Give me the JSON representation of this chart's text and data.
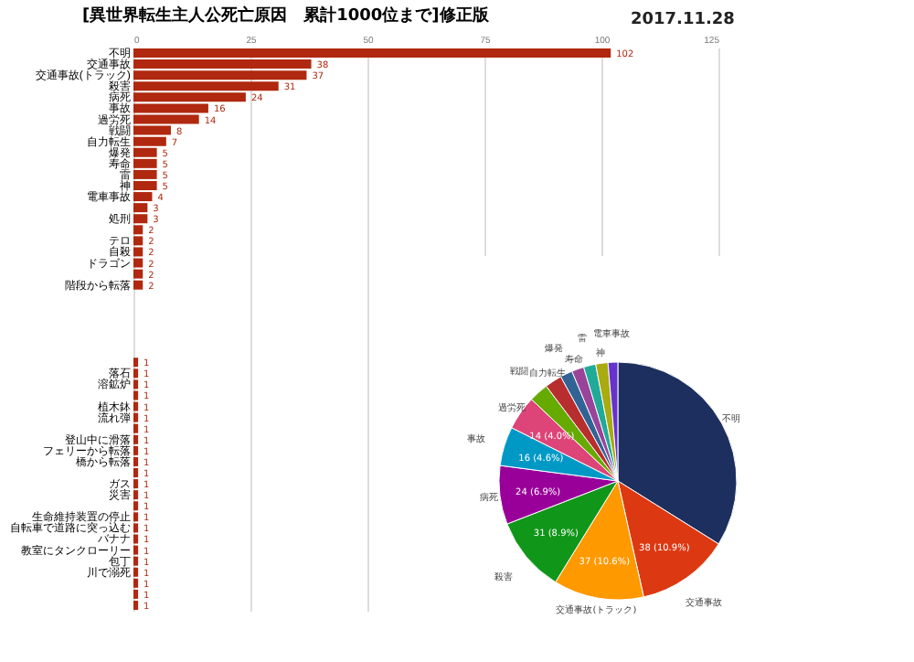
{
  "chart_data": [
    {
      "type": "bar",
      "orientation": "horizontal",
      "title": "[異世界転生主人公死亡原因　累計1000位まで]修正版",
      "annotations": [
        "2017.11.28"
      ],
      "color": "#b0280f",
      "data_labels": true,
      "grid": "x",
      "xlim": [
        0,
        125
      ],
      "xticks": [
        0,
        25,
        50,
        75,
        100,
        125
      ],
      "categories": [
        "不明",
        "交通事故",
        "交通事故(トラック)",
        "殺害",
        "病死",
        "事故",
        "過労死",
        "戦闘",
        "自力転生",
        "爆発",
        "寿命",
        "雷",
        "神",
        "電車事故",
        null,
        "処刑",
        null,
        "テロ",
        "自殺",
        "ドラゴン",
        null,
        "階段から転落",
        null,
        null,
        null,
        null,
        null,
        null,
        null,
        "落石",
        "溶鉱炉",
        null,
        "植木鉢",
        "流れ弾",
        null,
        "登山中に滑落",
        "フェリーから転落",
        "橋から転落",
        null,
        "ガス",
        "災害",
        null,
        "生命維持装置の停止",
        "自転車で道路に突っ込む",
        "バナナ",
        "教室にタンクローリー",
        "包丁",
        "川で溺死",
        null,
        null,
        null
      ],
      "values": [
        102,
        38,
        37,
        31,
        24,
        16,
        14,
        8,
        7,
        5,
        5,
        5,
        5,
        4,
        3,
        3,
        2,
        2,
        2,
        2,
        2,
        2,
        null,
        null,
        null,
        null,
        null,
        null,
        1,
        1,
        1,
        1,
        1,
        1,
        1,
        1,
        1,
        1,
        1,
        1,
        1,
        1,
        1,
        1,
        1,
        1,
        1,
        1,
        1,
        1,
        1
      ]
    },
    {
      "type": "pie",
      "categories": [
        "不明",
        "交通事故",
        "交通事故(トラック)",
        "殺害",
        "病死",
        "事故",
        "過労死",
        "戦闘",
        "自力転生",
        "爆発",
        "寿命",
        "雷",
        "神",
        "電車事故"
      ],
      "values": [
        102,
        38,
        37,
        31,
        24,
        16,
        14,
        8,
        7,
        5,
        5,
        5,
        5,
        4
      ],
      "colors": [
        "#1c2f5f",
        "#dc3912",
        "#ff9900",
        "#109618",
        "#990099",
        "#0099c6",
        "#dd4477",
        "#66aa00",
        "#b82e2e",
        "#316395",
        "#994499",
        "#22aa99",
        "#aaaa11",
        "#6633cc"
      ],
      "value_labels": [
        null,
        "38 (10.9%)",
        "37 (10.6%)",
        "31 (8.9%)",
        "24 (6.9%)",
        "16 (4.6%)",
        "14 (4.0%)",
        null,
        null,
        null,
        null,
        null,
        null,
        null
      ]
    }
  ]
}
